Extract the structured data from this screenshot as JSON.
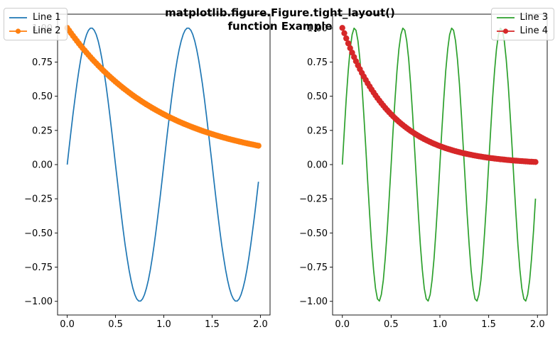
{
  "figure": {
    "background": "#ffffff",
    "suptitle": {
      "line1": "matplotlib.figure.Figure.tight_layout()",
      "line2": "function Example",
      "bold": true
    }
  },
  "legends": [
    {
      "location": "upper left",
      "entries": [
        {
          "label": "Line 1",
          "color": "#1f77b4",
          "marker": "none"
        },
        {
          "label": "Line 2",
          "color": "#ff7f0e",
          "marker": "o"
        }
      ]
    },
    {
      "location": "upper right",
      "entries": [
        {
          "label": "Line 3",
          "color": "#2ca02c",
          "marker": "none"
        },
        {
          "label": "Line 4",
          "color": "#d62728",
          "marker": "o"
        }
      ]
    }
  ],
  "chart_data": [
    {
      "type": "line",
      "position": "left",
      "title": "",
      "xlabel": "",
      "ylabel": "",
      "grid": false,
      "x_sampling": {
        "start": 0.0,
        "stop": 2.0,
        "step": 0.02,
        "n_points": 100
      },
      "xlim": [
        -0.1,
        2.1
      ],
      "ylim": [
        -1.1,
        1.1
      ],
      "xtick_values": [
        0.0,
        0.5,
        1.0,
        1.5,
        2.0
      ],
      "xtick_labels": [
        "0.0",
        "0.5",
        "1.0",
        "1.5",
        "2.0"
      ],
      "ytick_values": [
        1.0,
        0.75,
        0.5,
        0.25,
        0.0,
        -0.25,
        -0.5,
        -0.75,
        -1.0
      ],
      "ytick_labels": [
        "1.00",
        "0.75",
        "0.50",
        "0.25",
        "0.00",
        "−0.25",
        "−0.50",
        "−0.75",
        "−1.00"
      ],
      "series": [
        {
          "name": "Line 1",
          "color": "#1f77b4",
          "marker": "none",
          "line_width": 1.7,
          "fn": {
            "type": "sin",
            "coef_pi": 2
          },
          "formula": "y = sin(2πx)",
          "amplitude": 1.0,
          "period": 1.0,
          "y_at_start": 0.0,
          "y_at_end": -0.125,
          "peaks_x": [
            0.25,
            1.25
          ],
          "troughs_x": [
            0.75,
            1.75
          ]
        },
        {
          "name": "Line 2",
          "color": "#ff7f0e",
          "marker": "o",
          "line_width": 1.7,
          "fn": {
            "type": "exp",
            "rate": -1
          },
          "formula": "y = exp(-x)",
          "y_at_start": 1.0,
          "y_at_end": 0.138
        }
      ],
      "legend": {
        "location": "upper left",
        "entries": [
          "Line 1",
          "Line 2"
        ]
      }
    },
    {
      "type": "line",
      "position": "right",
      "title": "",
      "xlabel": "",
      "ylabel": "",
      "grid": false,
      "x_sampling": {
        "start": 0.0,
        "stop": 2.0,
        "step": 0.02,
        "n_points": 100
      },
      "xlim": [
        -0.1,
        2.1
      ],
      "ylim": [
        -1.1,
        1.1
      ],
      "xtick_values": [
        0.0,
        0.5,
        1.0,
        1.5,
        2.0
      ],
      "xtick_labels": [
        "0.0",
        "0.5",
        "1.0",
        "1.5",
        "2.0"
      ],
      "ytick_values": [
        1.0,
        0.75,
        0.5,
        0.25,
        0.0,
        -0.25,
        -0.5,
        -0.75,
        -1.0
      ],
      "ytick_labels": [
        "1.00",
        "0.75",
        "0.50",
        "0.25",
        "0.00",
        "−0.25",
        "−0.50",
        "−0.75",
        "−1.00"
      ],
      "series": [
        {
          "name": "Line 3",
          "color": "#2ca02c",
          "marker": "none",
          "line_width": 1.7,
          "fn": {
            "type": "sin",
            "coef_pi": 4
          },
          "formula": "y = sin(4πx)",
          "amplitude": 1.0,
          "period": 0.5,
          "y_at_start": 0.0,
          "y_at_end": -0.249,
          "peaks_x": [
            0.125,
            0.625,
            1.125,
            1.625
          ],
          "troughs_x": [
            0.375,
            0.875,
            1.375,
            1.875
          ]
        },
        {
          "name": "Line 4",
          "color": "#d62728",
          "marker": "o",
          "line_width": 1.7,
          "fn": {
            "type": "exp",
            "rate": -2
          },
          "formula": "y = exp(-2x)",
          "y_at_start": 1.0,
          "y_at_end": 0.019
        }
      ],
      "legend": {
        "location": "upper right",
        "entries": [
          "Line 3",
          "Line 4"
        ]
      }
    }
  ]
}
